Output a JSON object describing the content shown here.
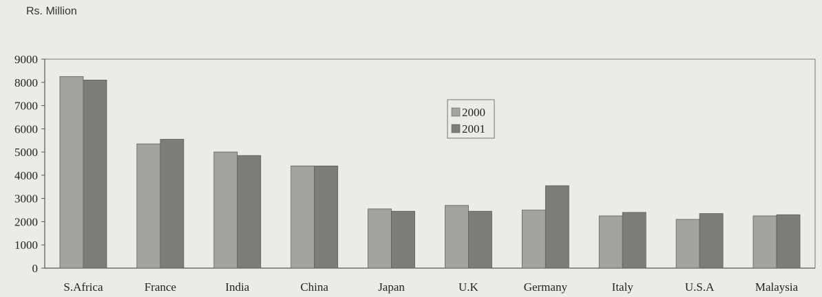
{
  "chart_data": {
    "type": "bar",
    "title": "",
    "unit_label": "Rs. Million",
    "xlabel": "",
    "ylabel": "Rs. Million",
    "categories": [
      "S.Africa",
      "France",
      "India",
      "China",
      "Japan",
      "U.K",
      "Germany",
      "Italy",
      "U.S.A",
      "Malaysia"
    ],
    "series": [
      {
        "name": "2000",
        "values": [
          8250,
          5350,
          5000,
          4400,
          2550,
          2700,
          2500,
          2250,
          2100,
          2250
        ]
      },
      {
        "name": "2001",
        "values": [
          8100,
          5550,
          4850,
          4400,
          2450,
          2450,
          3550,
          2400,
          2350,
          2300
        ]
      }
    ],
    "ylim": [
      0,
      9000
    ],
    "yticks": [
      0,
      1000,
      2000,
      3000,
      4000,
      5000,
      6000,
      7000,
      8000,
      9000
    ],
    "legend_position": "upper-right",
    "grid": false,
    "colors": {
      "2000": "#a3a3a0",
      "2001": "#7c7c79",
      "background": "#ecebe8",
      "axis": "#555555"
    }
  }
}
